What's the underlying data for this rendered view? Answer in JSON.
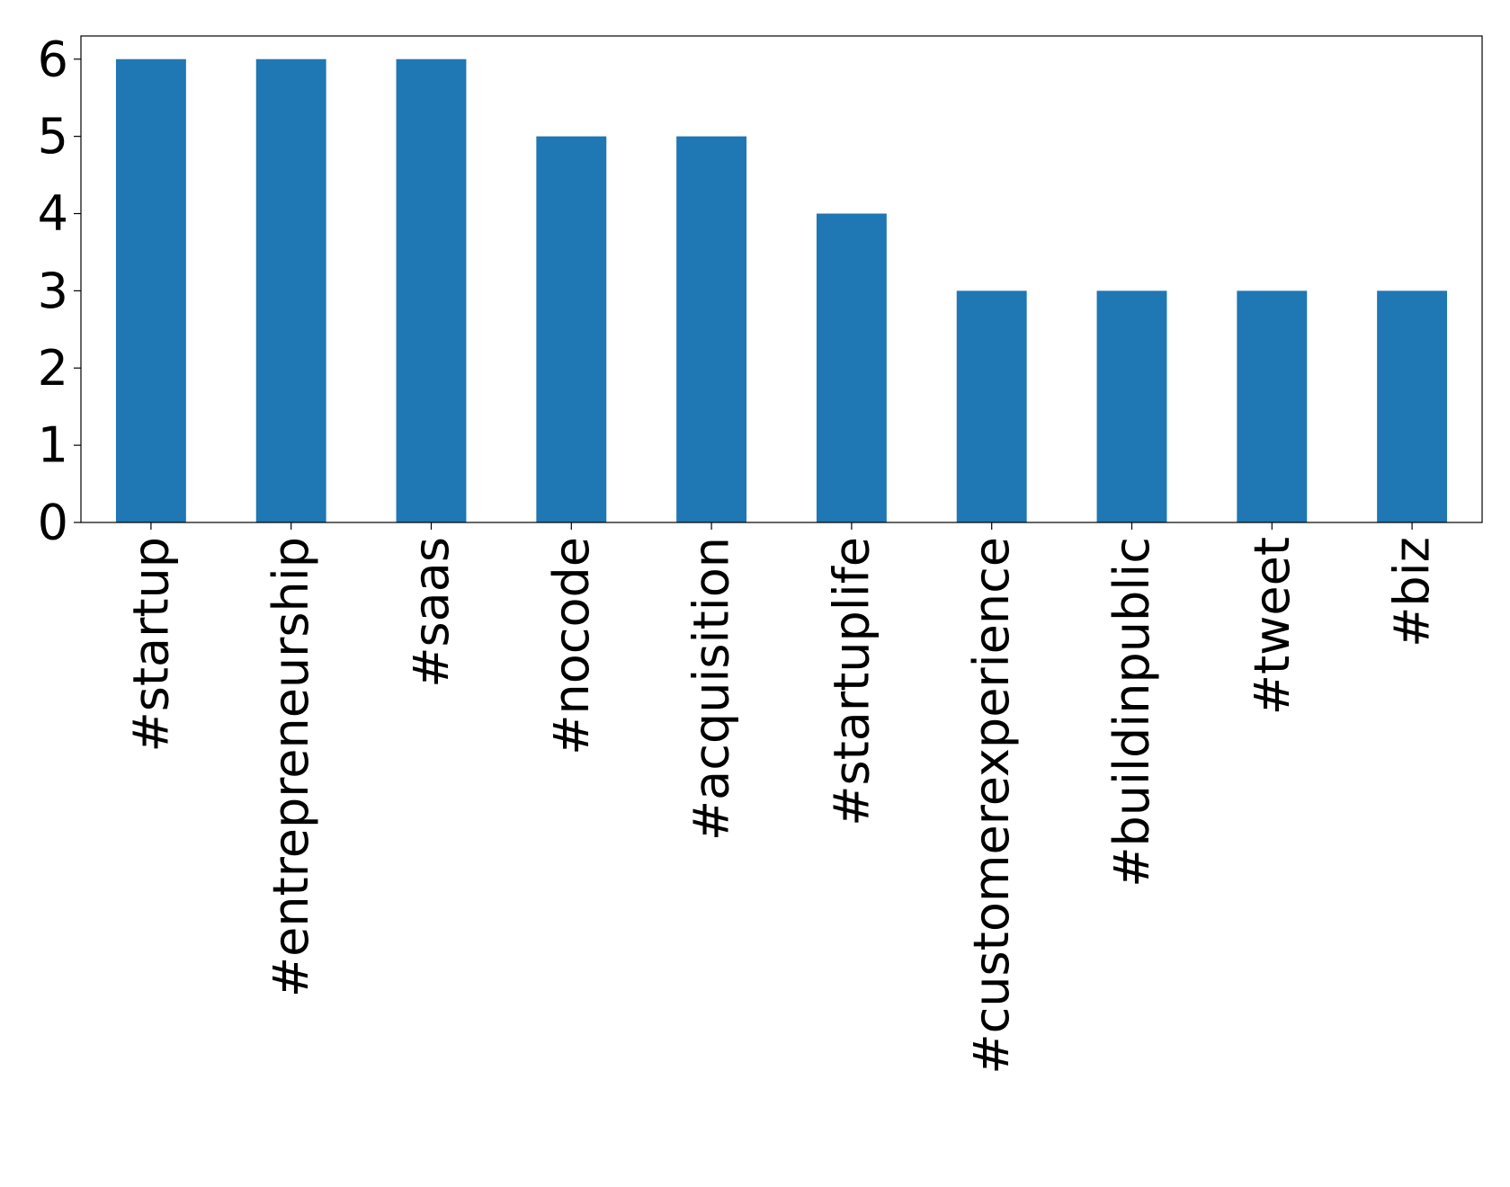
{
  "chart_data": {
    "type": "bar",
    "categories": [
      "#startup",
      "#entrepreneurship",
      "#saas",
      "#nocode",
      "#acquisition",
      "#startuplife",
      "#customerexperience",
      "#buildinpublic",
      "#tweet",
      "#biz"
    ],
    "values": [
      6,
      6,
      6,
      5,
      5,
      4,
      3,
      3,
      3,
      3
    ],
    "color": "#1f77b4",
    "ylim": [
      0,
      6.3
    ],
    "yticks": [
      0,
      1,
      2,
      3,
      4,
      5,
      6
    ],
    "grid": false
  }
}
